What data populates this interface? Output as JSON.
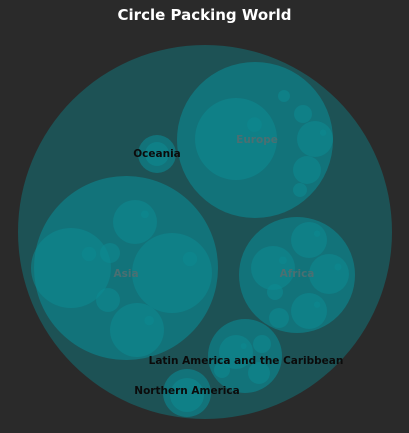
{
  "chart_data": {
    "type": "circle-packing",
    "title": "Circle Packing World",
    "colors": {
      "background": "#2a2a2a",
      "fill": "#0c8a92",
      "label_dark": "#0b0b0b",
      "label_faded": "#4a6f72"
    },
    "root": "World",
    "groups": [
      {
        "name": "Asia",
        "label_style": "faded"
      },
      {
        "name": "Europe",
        "label_style": "faded"
      },
      {
        "name": "Africa",
        "label_style": "faded"
      },
      {
        "name": "Latin America and the Caribbean",
        "label_style": "dark"
      },
      {
        "name": "Northern America",
        "label_style": "dark"
      },
      {
        "name": "Oceania",
        "label_style": "dark"
      }
    ]
  }
}
